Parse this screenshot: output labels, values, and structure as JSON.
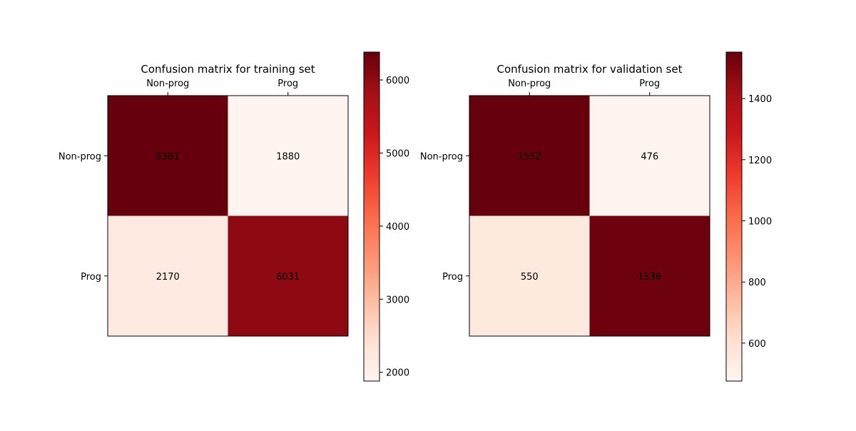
{
  "chart_data": [
    {
      "type": "heatmap",
      "title": "Confusion matrix for training set",
      "xlabel": "",
      "ylabel": "",
      "x_categories": [
        "Non-prog",
        "Prog"
      ],
      "y_categories": [
        "Non-prog",
        "Prog"
      ],
      "values": [
        [
          6381,
          1880
        ],
        [
          2170,
          6031
        ]
      ],
      "colormap": "Reds",
      "colorbar": {
        "range": [
          1880,
          6381
        ],
        "ticks": [
          2000,
          3000,
          4000,
          5000,
          6000
        ]
      }
    },
    {
      "type": "heatmap",
      "title": "Confusion matrix for validation set",
      "xlabel": "",
      "ylabel": "",
      "x_categories": [
        "Non-prog",
        "Prog"
      ],
      "y_categories": [
        "Non-prog",
        "Prog"
      ],
      "values": [
        [
          1552,
          476
        ],
        [
          550,
          1538
        ]
      ],
      "colormap": "Reds",
      "colorbar": {
        "range": [
          476,
          1552
        ],
        "ticks": [
          600,
          800,
          1000,
          1200,
          1400
        ]
      }
    }
  ],
  "colors": {
    "reds_stops": [
      "#fff5f0",
      "#fee0d2",
      "#fcbba1",
      "#fc9272",
      "#fb6a4a",
      "#ef3b2c",
      "#cb181d",
      "#a50f15",
      "#67000d"
    ],
    "axis": "#000000",
    "text": "#000000"
  }
}
